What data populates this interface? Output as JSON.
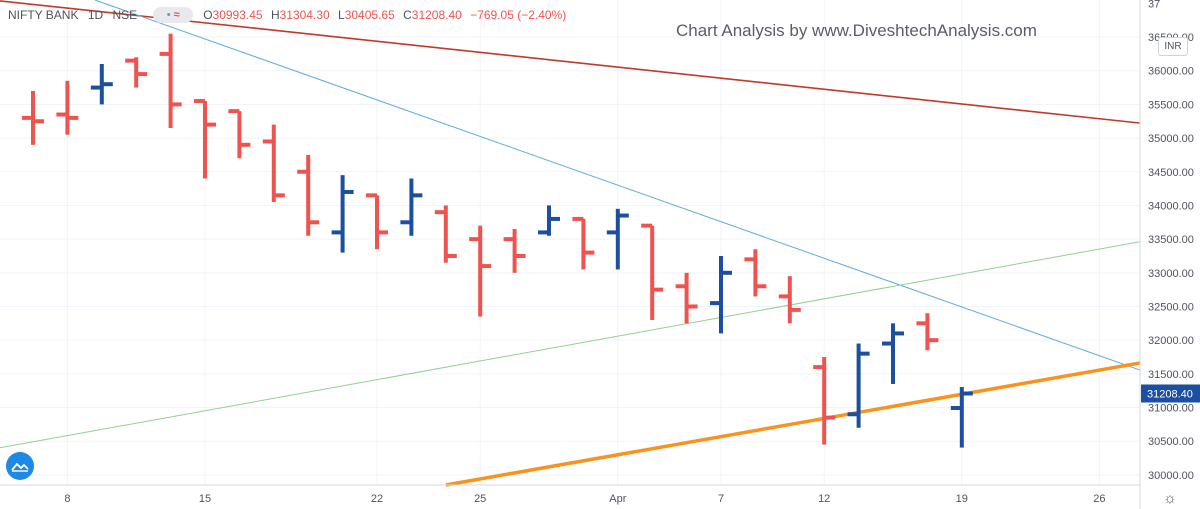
{
  "header": {
    "symbol": "NIFTY BANK",
    "interval": "1D",
    "exchange": "NSE",
    "indicator_dot": "•",
    "indicator_wave": "≈",
    "ohlc": {
      "o_label": "O",
      "o": "30993.45",
      "h_label": "H",
      "h": "31304.30",
      "l_label": "L",
      "l": "30405.65",
      "c_label": "C",
      "c": "31208.40",
      "change": "−769.05 (−2.40%)"
    }
  },
  "watermark": "Chart Analysis by www.DiveshtechAnalysis.com",
  "currency_badge": "INR",
  "colors": {
    "up": "#1c4fa0",
    "down": "#ef5350",
    "red_trendline": "#c0392b",
    "blue_trendline": "#5aace3",
    "green_trendline": "#8fd18f",
    "orange_trendline": "#f7931e",
    "price_label": "#1c4fa0",
    "grid": "#f0f3fa",
    "axis_text": "#50535e"
  },
  "chart_data": {
    "type": "ohlc",
    "title": "",
    "ylim": [
      29850,
      37050
    ],
    "y_ticks": [
      30000,
      30500,
      31000,
      31500,
      32000,
      32500,
      33000,
      33500,
      34000,
      34500,
      35000,
      35500,
      36000,
      36500
    ],
    "y_tick_labels": [
      "30000.00",
      "30500.00",
      "31000.00",
      "31500.00",
      "32000.00",
      "32500.00",
      "33000.00",
      "33500.00",
      "34000.00",
      "34500.00",
      "35000.00",
      "35500.00",
      "36000.00",
      "36500.00"
    ],
    "y_top_partial_label": "37",
    "last_price": 31208.4,
    "last_price_label": "31208.40",
    "x_labels": [
      {
        "label": "8",
        "bar": 1
      },
      {
        "label": "15",
        "bar": 5
      },
      {
        "label": "22",
        "bar": 10
      },
      {
        "label": "25",
        "bar": 13
      },
      {
        "label": "Apr",
        "bar": 17
      },
      {
        "label": "7",
        "bar": 20
      },
      {
        "label": "12",
        "bar": 23
      },
      {
        "label": "19",
        "bar": 27
      },
      {
        "label": "26",
        "bar": 31
      }
    ],
    "bars": [
      {
        "o": 35300,
        "h": 35700,
        "l": 34900,
        "c": 35250
      },
      {
        "o": 35350,
        "h": 35850,
        "l": 35050,
        "c": 35300
      },
      {
        "o": 35750,
        "h": 36100,
        "l": 35500,
        "c": 35800
      },
      {
        "o": 36150,
        "h": 36200,
        "l": 35750,
        "c": 35950
      },
      {
        "o": 36250,
        "h": 36550,
        "l": 35150,
        "c": 35500
      },
      {
        "o": 35550,
        "h": 35550,
        "l": 34400,
        "c": 35200
      },
      {
        "o": 35400,
        "h": 35400,
        "l": 34700,
        "c": 34900
      },
      {
        "o": 34950,
        "h": 35200,
        "l": 34050,
        "c": 34150
      },
      {
        "o": 34500,
        "h": 34750,
        "l": 33550,
        "c": 33750
      },
      {
        "o": 33600,
        "h": 34450,
        "l": 33300,
        "c": 34200
      },
      {
        "o": 34150,
        "h": 34150,
        "l": 33350,
        "c": 33600
      },
      {
        "o": 33750,
        "h": 34400,
        "l": 33550,
        "c": 34150
      },
      {
        "o": 33900,
        "h": 34000,
        "l": 33150,
        "c": 33250
      },
      {
        "o": 33500,
        "h": 33700,
        "l": 32350,
        "c": 33100
      },
      {
        "o": 33500,
        "h": 33650,
        "l": 33000,
        "c": 33250
      },
      {
        "o": 33600,
        "h": 34000,
        "l": 33550,
        "c": 33800
      },
      {
        "o": 33800,
        "h": 33800,
        "l": 33050,
        "c": 33300
      },
      {
        "o": 33600,
        "h": 33950,
        "l": 33050,
        "c": 33850
      },
      {
        "o": 33700,
        "h": 33700,
        "l": 32300,
        "c": 32750
      },
      {
        "o": 32800,
        "h": 33000,
        "l": 32250,
        "c": 32500
      },
      {
        "o": 32550,
        "h": 33250,
        "l": 32100,
        "c": 33000
      },
      {
        "o": 33200,
        "h": 33350,
        "l": 32650,
        "c": 32800
      },
      {
        "o": 32650,
        "h": 32950,
        "l": 32250,
        "c": 32450
      },
      {
        "o": 31600,
        "h": 31750,
        "l": 30450,
        "c": 30850
      },
      {
        "o": 30900,
        "h": 31950,
        "l": 30700,
        "c": 31800
      },
      {
        "o": 31950,
        "h": 32250,
        "l": 31350,
        "c": 32100
      },
      {
        "o": 32250,
        "h": 32400,
        "l": 31850,
        "c": 32000
      },
      {
        "o": 30993.45,
        "h": 31304.3,
        "l": 30405.65,
        "c": 31208.4
      }
    ],
    "trendlines": [
      {
        "name": "red",
        "p1": {
          "bar": -1.2,
          "y": 37050
        },
        "p2": {
          "bar": 32.6,
          "y": 35200
        }
      },
      {
        "name": "blue",
        "p1": {
          "bar": 1.8,
          "y": 37050
        },
        "p2": {
          "bar": 32.6,
          "y": 31480
        }
      },
      {
        "name": "green",
        "p1": {
          "bar": -1.2,
          "y": 30380
        },
        "p2": {
          "bar": 32.6,
          "y": 33500
        }
      },
      {
        "name": "orange",
        "p1": {
          "bar": 12.0,
          "y": 29850
        },
        "p2": {
          "bar": 32.6,
          "y": 31700
        }
      }
    ]
  }
}
